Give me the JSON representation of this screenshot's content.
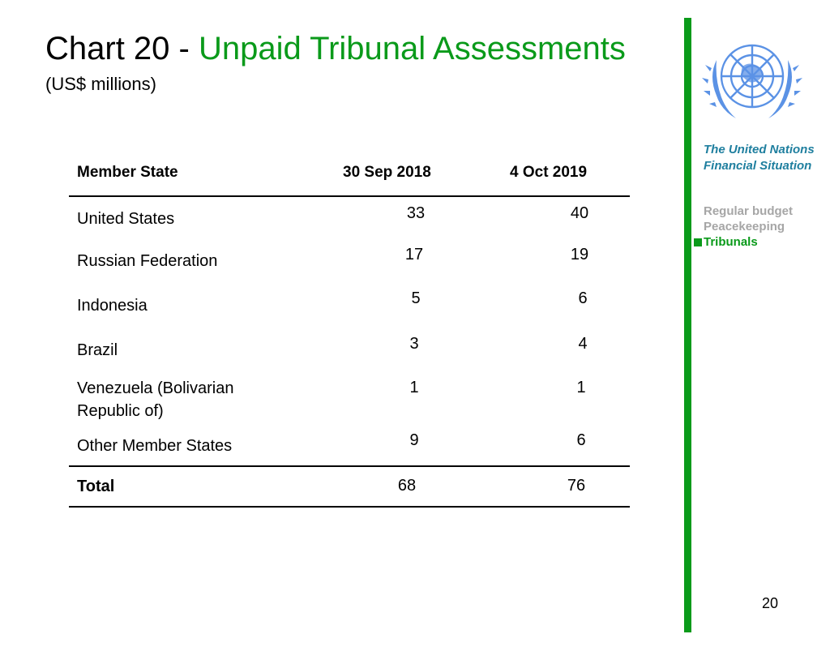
{
  "slide": {
    "title_prefix": "Chart 20 - ",
    "title_main": "Unpaid Tribunal Assessments",
    "subtitle": "(US$ millions)",
    "page_number": "20"
  },
  "sidebar": {
    "title_line1": "The United Nations",
    "title_line2": "Financial Situation",
    "items": [
      "Regular budget",
      "Peacekeeping",
      "Tribunals"
    ],
    "active_item": "Tribunals",
    "logo_icon": "un-emblem-icon",
    "accent_color": "#0a9a1a",
    "title_color": "#1f7f9f",
    "inactive_color": "#a6a6a6"
  },
  "table": {
    "headers": [
      "Member State",
      "30 Sep 2018",
      "4 Oct 2019"
    ],
    "rows": [
      {
        "state": "United States",
        "v2018": "33",
        "v2019": "40"
      },
      {
        "state": "Russian Federation",
        "v2018": "17",
        "v2019": "19"
      },
      {
        "state": "Indonesia",
        "v2018": "5",
        "v2019": "6"
      },
      {
        "state": "Brazil",
        "v2018": "3",
        "v2019": "4"
      },
      {
        "state": "Venezuela (Bolivarian\nRepublic of)",
        "v2018": "1",
        "v2019": "1"
      },
      {
        "state": "Other Member States",
        "v2018": "9",
        "v2019": "6"
      }
    ],
    "total": {
      "label": "Total",
      "v2018": "68",
      "v2019": "76"
    }
  }
}
